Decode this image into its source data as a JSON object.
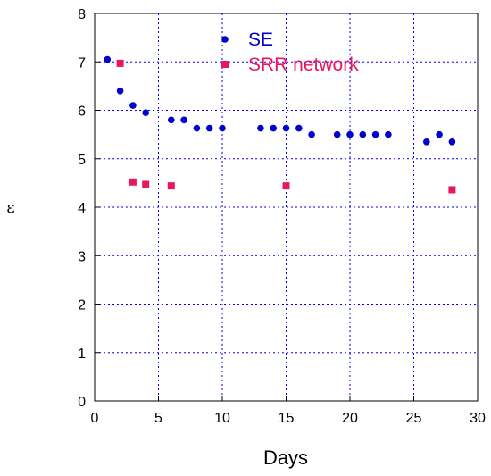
{
  "chart_data": {
    "type": "scatter",
    "xlabel": "Days",
    "ylabel": "ε",
    "xlim": [
      0,
      30
    ],
    "ylim": [
      0,
      8
    ],
    "x_ticks": [
      0,
      5,
      10,
      15,
      20,
      25,
      30
    ],
    "y_ticks": [
      0,
      1,
      2,
      3,
      4,
      5,
      6,
      7,
      8
    ],
    "grid": true,
    "legend": "top-center",
    "series": [
      {
        "name": "SE",
        "marker": "circle",
        "color": "#0000cc",
        "x": [
          1,
          2,
          3,
          4,
          6,
          7,
          8,
          9,
          10,
          13,
          14,
          15,
          16,
          17,
          19,
          20,
          21,
          22,
          23,
          26,
          27,
          28
        ],
        "y": [
          7.05,
          6.4,
          6.1,
          5.95,
          5.8,
          5.8,
          5.63,
          5.63,
          5.63,
          5.63,
          5.63,
          5.63,
          5.63,
          5.5,
          5.5,
          5.5,
          5.5,
          5.5,
          5.5,
          5.35,
          5.5,
          5.35
        ]
      },
      {
        "name": "SRR network",
        "marker": "square",
        "color": "#e8175d",
        "x": [
          2,
          3,
          4,
          6,
          15,
          28
        ],
        "y": [
          6.97,
          4.52,
          4.47,
          4.44,
          4.44,
          4.36
        ]
      }
    ]
  }
}
